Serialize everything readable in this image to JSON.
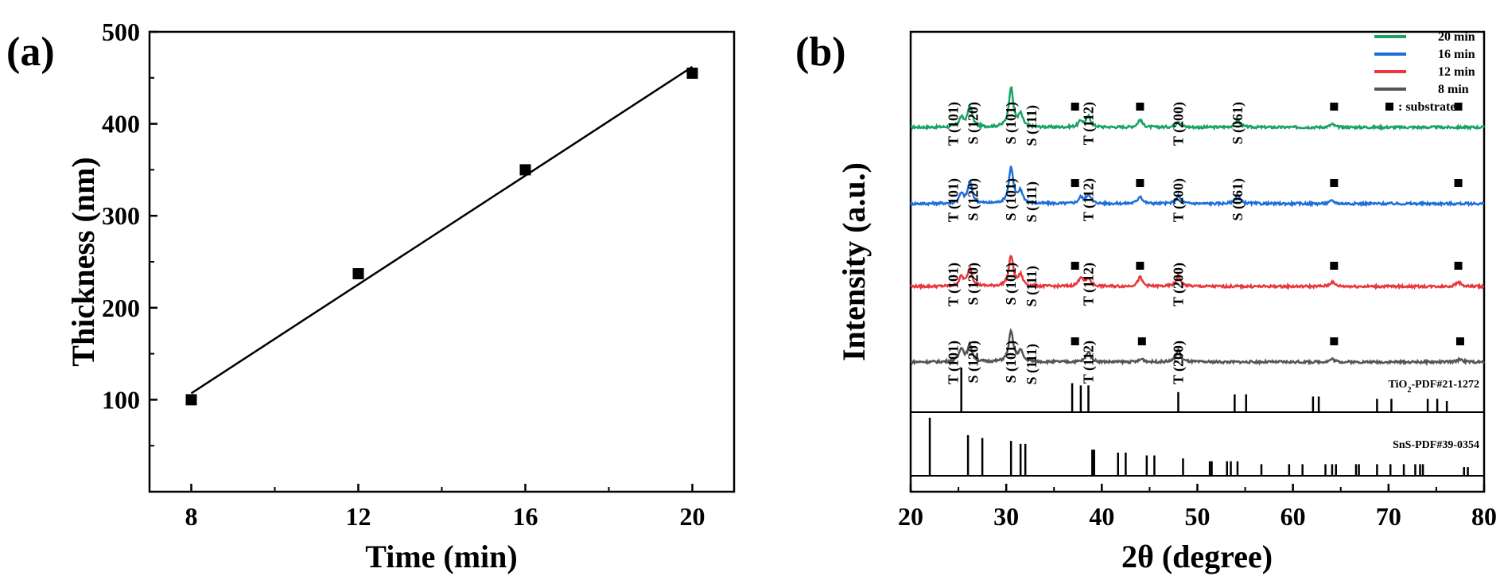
{
  "colors": {
    "axis": "#000000",
    "20 min": "#1aa366",
    "16 min": "#1e6fd9",
    "12 min": "#e8383d",
    "8 min": "#555555",
    "marker": "#000000"
  },
  "chart_data": [
    {
      "panel": "(a)",
      "type": "scatter",
      "xlabel": "Time (min)",
      "ylabel": "Thickness (nm)",
      "xlim": [
        7,
        21
      ],
      "ylim": [
        0,
        500
      ],
      "xticks": [
        "8",
        "12",
        "16",
        "20"
      ],
      "yticks": [
        "100",
        "200",
        "300",
        "400",
        "500"
      ],
      "points": [
        {
          "x": 8,
          "y": 100
        },
        {
          "x": 12,
          "y": 237
        },
        {
          "x": 16,
          "y": 350
        },
        {
          "x": 20,
          "y": 455
        }
      ],
      "fit_line": {
        "x": [
          8,
          20
        ],
        "y": [
          107,
          462
        ]
      }
    },
    {
      "panel": "(b)",
      "type": "line",
      "xlabel": "2θ (degree)",
      "ylabel": "Intensity (a.u.)",
      "xlim": [
        20,
        80
      ],
      "xticks": [
        "20",
        "30",
        "40",
        "50",
        "60",
        "70",
        "80"
      ],
      "legend": [
        "20 min",
        "16 min",
        "12 min",
        "8 min",
        ": substrate"
      ],
      "series": [
        {
          "name": "20 min",
          "baseline": 4,
          "peaks": [
            [
              25.3,
              0.3
            ],
            [
              26.2,
              0.7
            ],
            [
              30.5,
              1.3
            ],
            [
              31.5,
              0.4
            ],
            [
              37.8,
              0.2
            ],
            [
              38.6,
              0.35
            ],
            [
              44.0,
              0.25
            ],
            [
              48.0,
              0.2
            ],
            [
              54.2,
              0.25
            ],
            [
              64.1,
              0.1
            ]
          ],
          "peak_labels": [
            {
              "text": "T (101)",
              "x": 25.3
            },
            {
              "text": "S (120)",
              "x": 26.2
            },
            {
              "text": "S (101)",
              "x": 30.5
            },
            {
              "text": "S (111)",
              "x": 31.5
            },
            {
              "text": "T (112)",
              "x": 38.6
            },
            {
              "text": "T (200)",
              "x": 48.0
            },
            {
              "text": "S (061)",
              "x": 54.2
            }
          ],
          "substrate_markers": [
            37.2,
            44.0,
            64.3,
            77.3
          ]
        },
        {
          "name": "16 min",
          "baseline": 3,
          "peaks": [
            [
              25.3,
              0.3
            ],
            [
              26.2,
              0.7
            ],
            [
              30.5,
              1.2
            ],
            [
              31.5,
              0.4
            ],
            [
              37.8,
              0.2
            ],
            [
              38.6,
              0.3
            ],
            [
              44.0,
              0.25
            ],
            [
              48.0,
              0.25
            ],
            [
              54.2,
              0.3
            ],
            [
              64.1,
              0.1
            ]
          ],
          "peak_labels": [
            {
              "text": "T (101)",
              "x": 25.3
            },
            {
              "text": "S (120)",
              "x": 26.2
            },
            {
              "text": "S (101)",
              "x": 30.5
            },
            {
              "text": "S (111)",
              "x": 31.5
            },
            {
              "text": "T (112)",
              "x": 38.6
            },
            {
              "text": "T (200)",
              "x": 48.0
            },
            {
              "text": "S (061)",
              "x": 54.2
            }
          ],
          "substrate_markers": [
            37.2,
            44.0,
            64.3,
            77.3
          ]
        },
        {
          "name": "12 min",
          "baseline": 2,
          "peaks": [
            [
              25.3,
              0.3
            ],
            [
              26.2,
              0.6
            ],
            [
              30.5,
              1.0
            ],
            [
              31.5,
              0.35
            ],
            [
              37.8,
              0.3
            ],
            [
              38.6,
              0.25
            ],
            [
              44.0,
              0.3
            ],
            [
              48.0,
              0.35
            ],
            [
              64.1,
              0.15
            ],
            [
              77.3,
              0.15
            ]
          ],
          "peak_labels": [
            {
              "text": "T (101)",
              "x": 25.3
            },
            {
              "text": "S (120)",
              "x": 26.2
            },
            {
              "text": "S (101)",
              "x": 30.5
            },
            {
              "text": "S (111)",
              "x": 31.5
            },
            {
              "text": "T (112)",
              "x": 38.6
            },
            {
              "text": "T (200)",
              "x": 48.0
            }
          ],
          "substrate_markers": [
            37.2,
            44.0,
            64.3,
            77.3
          ]
        },
        {
          "name": "8 min",
          "baseline": 1,
          "peaks": [
            [
              25.3,
              0.45
            ],
            [
              26.2,
              0.55
            ],
            [
              30.5,
              1.0
            ],
            [
              31.5,
              0.35
            ],
            [
              38.6,
              0.35
            ],
            [
              44.2,
              0.1
            ],
            [
              48.0,
              0.4
            ],
            [
              64.1,
              0.1
            ],
            [
              77.5,
              0.1
            ]
          ],
          "peak_labels": [
            {
              "text": "T (101)",
              "x": 25.3
            },
            {
              "text": "S (120)",
              "x": 26.2
            },
            {
              "text": "S (101)",
              "x": 30.5
            },
            {
              "text": "S (111)",
              "x": 31.5
            },
            {
              "text": "T (112)",
              "x": 38.6
            },
            {
              "text": "T (200)",
              "x": 48.0
            }
          ],
          "substrate_markers": [
            37.2,
            44.2,
            64.3,
            77.5
          ]
        }
      ],
      "references": [
        {
          "name": "TiO2-PDF#21-1272",
          "label_main": "TiO",
          "label_sub": "2",
          "label_rest": "-PDF#21-1272",
          "lines": [
            [
              25.3,
              1.0
            ],
            [
              36.9,
              0.65
            ],
            [
              37.8,
              0.6
            ],
            [
              38.6,
              0.6
            ],
            [
              48.0,
              0.45
            ],
            [
              53.9,
              0.4
            ],
            [
              55.1,
              0.4
            ],
            [
              62.1,
              0.35
            ],
            [
              62.7,
              0.35
            ],
            [
              68.8,
              0.3
            ],
            [
              70.3,
              0.3
            ],
            [
              74.1,
              0.3
            ],
            [
              75.1,
              0.3
            ],
            [
              76.1,
              0.25
            ]
          ]
        },
        {
          "name": "SnS-PDF#39-0354",
          "label_main": "SnS-PDF#39-0354",
          "lines": [
            [
              22.0,
              1.0
            ],
            [
              26.0,
              0.7
            ],
            [
              27.5,
              0.65
            ],
            [
              30.5,
              0.6
            ],
            [
              31.5,
              0.55
            ],
            [
              32.0,
              0.55
            ],
            [
              39.0,
              0.45
            ],
            [
              39.2,
              0.45
            ],
            [
              41.7,
              0.4
            ],
            [
              42.5,
              0.4
            ],
            [
              44.7,
              0.35
            ],
            [
              45.5,
              0.35
            ],
            [
              48.5,
              0.3
            ],
            [
              51.3,
              0.25
            ],
            [
              51.5,
              0.25
            ],
            [
              53.1,
              0.25
            ],
            [
              53.5,
              0.25
            ],
            [
              54.2,
              0.25
            ],
            [
              56.7,
              0.2
            ],
            [
              59.6,
              0.2
            ],
            [
              61.0,
              0.2
            ],
            [
              63.4,
              0.2
            ],
            [
              64.1,
              0.2
            ],
            [
              64.5,
              0.2
            ],
            [
              66.6,
              0.2
            ],
            [
              66.9,
              0.2
            ],
            [
              68.8,
              0.2
            ],
            [
              70.2,
              0.2
            ],
            [
              71.6,
              0.2
            ],
            [
              72.8,
              0.2
            ],
            [
              73.3,
              0.2
            ],
            [
              73.6,
              0.2
            ],
            [
              77.9,
              0.15
            ],
            [
              78.3,
              0.15
            ]
          ]
        }
      ]
    }
  ]
}
